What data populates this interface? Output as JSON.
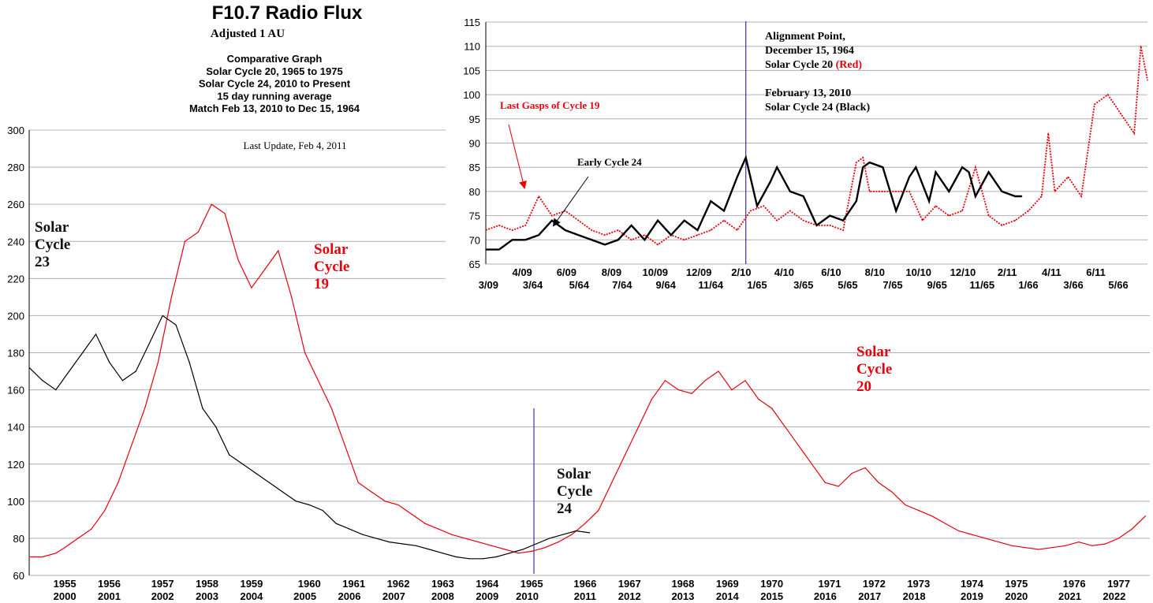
{
  "header": {
    "title": "F10.7 Radio Flux",
    "subtitle": "Adjusted 1 AU",
    "desc_lines": [
      "Comparative Graph",
      "Solar Cycle 20, 1965 to 1975",
      "Solar Cycle 24, 2010 to Present",
      "15 day running average",
      "Match Feb 13, 2010 to Dec 15, 1964"
    ],
    "update": "Last Update, Feb 4, 2011"
  },
  "colors": {
    "red": "#e8000b",
    "black": "#000000",
    "blue": "#1010a0",
    "grid": "#b0b0b0"
  },
  "chart_data": [
    {
      "type": "line",
      "id": "main",
      "ylim": [
        60,
        300
      ],
      "yticks": [
        60,
        80,
        100,
        120,
        140,
        160,
        180,
        200,
        220,
        240,
        260,
        280,
        300
      ],
      "xaxis_top": [
        {
          "label": "1955",
          "x": 1955.0
        },
        {
          "label": "1956",
          "x": 1956.0
        },
        {
          "label": "1957",
          "x": 1957.2
        },
        {
          "label": "1958",
          "x": 1958.2
        },
        {
          "label": "1959",
          "x": 1959.2
        },
        {
          "label": "1960",
          "x": 1960.5
        },
        {
          "label": "1961",
          "x": 1961.5
        },
        {
          "label": "1962",
          "x": 1962.5
        },
        {
          "label": "1963",
          "x": 1963.5
        },
        {
          "label": "1964",
          "x": 1964.5
        },
        {
          "label": "1965",
          "x": 1965.5
        },
        {
          "label": "1966",
          "x": 1966.7
        },
        {
          "label": "1967",
          "x": 1967.7
        },
        {
          "label": "1968",
          "x": 1968.9
        },
        {
          "label": "1969",
          "x": 1969.9
        },
        {
          "label": "1970",
          "x": 1970.9
        },
        {
          "label": "1971",
          "x": 1972.2
        },
        {
          "label": "1972",
          "x": 1973.2
        },
        {
          "label": "1973",
          "x": 1974.2
        },
        {
          "label": "1974",
          "x": 1975.4
        },
        {
          "label": "1975",
          "x": 1976.4
        },
        {
          "label": "1976",
          "x": 1977.7
        },
        {
          "label": "1977",
          "x": 1978.7
        }
      ],
      "xaxis_bottom": [
        {
          "label": "2000",
          "x": 1955.0
        },
        {
          "label": "2001",
          "x": 1956.0
        },
        {
          "label": "2002",
          "x": 1957.2
        },
        {
          "label": "2003",
          "x": 1958.2
        },
        {
          "label": "2004",
          "x": 1959.2
        },
        {
          "label": "2005",
          "x": 1960.4
        },
        {
          "label": "2006",
          "x": 1961.4
        },
        {
          "label": "2007",
          "x": 1962.4
        },
        {
          "label": "2008",
          "x": 1963.5
        },
        {
          "label": "2009",
          "x": 1964.5
        },
        {
          "label": "2010",
          "x": 1965.4
        },
        {
          "label": "2011",
          "x": 1966.7
        },
        {
          "label": "2012",
          "x": 1967.7
        },
        {
          "label": "2013",
          "x": 1968.9
        },
        {
          "label": "2014",
          "x": 1969.9
        },
        {
          "label": "2015",
          "x": 1970.9
        },
        {
          "label": "2016",
          "x": 1972.1
        },
        {
          "label": "2017",
          "x": 1973.1
        },
        {
          "label": "2018",
          "x": 1974.1
        },
        {
          "label": "2019",
          "x": 1975.4
        },
        {
          "label": "2020",
          "x": 1976.4
        },
        {
          "label": "2021",
          "x": 1977.6
        },
        {
          "label": "2022",
          "x": 1978.6
        }
      ],
      "xlim": [
        1954.2,
        1979.4
      ],
      "alignment_x": 1965.55,
      "series": [
        {
          "color": "red",
          "x": [
            1954.2,
            1954.5,
            1954.8,
            1955.0,
            1955.3,
            1955.6,
            1955.9,
            1956.2,
            1956.5,
            1956.8,
            1957.1,
            1957.4,
            1957.7,
            1958.0,
            1958.3,
            1958.6,
            1958.9,
            1959.2,
            1959.5,
            1959.8,
            1960.1,
            1960.4,
            1960.7,
            1961.0,
            1961.3,
            1961.6,
            1961.9,
            1962.2,
            1962.5,
            1962.8,
            1963.1,
            1963.4,
            1963.7,
            1964.0,
            1964.3,
            1964.6,
            1964.9,
            1965.2,
            1965.5,
            1965.8,
            1966.1,
            1966.4,
            1966.7,
            1967.0,
            1967.3,
            1967.6,
            1967.9,
            1968.2,
            1968.5,
            1968.8,
            1969.1,
            1969.4,
            1969.7,
            1970.0,
            1970.3,
            1970.6,
            1970.9,
            1971.2,
            1971.5,
            1971.8,
            1972.1,
            1972.4,
            1972.7,
            1973.0,
            1973.3,
            1973.6,
            1973.9,
            1974.2,
            1974.5,
            1974.8,
            1975.1,
            1975.4,
            1975.7,
            1976.0,
            1976.3,
            1976.6,
            1976.9,
            1977.2,
            1977.5,
            1977.8,
            1978.1,
            1978.4,
            1978.7,
            1979.0,
            1979.3
          ],
          "y": [
            70,
            70,
            72,
            75,
            80,
            85,
            95,
            110,
            130,
            150,
            175,
            210,
            240,
            245,
            260,
            255,
            230,
            215,
            225,
            235,
            210,
            180,
            165,
            150,
            130,
            110,
            105,
            100,
            98,
            93,
            88,
            85,
            82,
            80,
            78,
            76,
            74,
            72,
            73,
            75,
            78,
            82,
            88,
            95,
            110,
            125,
            140,
            155,
            165,
            160,
            158,
            165,
            170,
            160,
            165,
            155,
            150,
            140,
            130,
            120,
            110,
            108,
            115,
            118,
            110,
            105,
            98,
            95,
            92,
            88,
            84,
            82,
            80,
            78,
            76,
            75,
            74,
            75,
            76,
            78,
            76,
            77,
            80,
            85,
            92
          ]
        },
        {
          "color": "black",
          "x": [
            1954.2,
            1954.5,
            1954.8,
            1955.1,
            1955.4,
            1955.7,
            1956.0,
            1956.3,
            1956.6,
            1956.9,
            1957.2,
            1957.5,
            1957.8,
            1958.1,
            1958.4,
            1958.7,
            1959.0,
            1959.3,
            1959.6,
            1959.9,
            1960.2,
            1960.5,
            1960.8,
            1961.1,
            1961.4,
            1961.7,
            1962.0,
            1962.3,
            1962.6,
            1962.9,
            1963.2,
            1963.5,
            1963.8,
            1964.1,
            1964.4,
            1964.7,
            1965.0,
            1965.3,
            1965.6,
            1965.9,
            1966.2,
            1966.5,
            1966.8
          ],
          "y": [
            172,
            165,
            160,
            170,
            180,
            190,
            175,
            165,
            170,
            185,
            200,
            195,
            175,
            150,
            140,
            125,
            120,
            115,
            110,
            105,
            100,
            98,
            95,
            88,
            85,
            82,
            80,
            78,
            77,
            76,
            74,
            72,
            70,
            69,
            69,
            70,
            72,
            74,
            77,
            80,
            82,
            84,
            83
          ]
        }
      ],
      "labels": {
        "cycle23": [
          "Solar",
          "Cycle",
          "23"
        ],
        "cycle19": [
          "Solar",
          "Cycle",
          "19"
        ],
        "cycle24": [
          "Solar",
          "Cycle",
          "24"
        ],
        "cycle20": [
          "Solar",
          "Cycle",
          "20"
        ]
      }
    },
    {
      "type": "line",
      "id": "inset",
      "ylim": [
        65,
        115
      ],
      "yticks": [
        65,
        70,
        75,
        80,
        85,
        90,
        95,
        100,
        105,
        110,
        115
      ],
      "xlim": [
        0,
        100
      ],
      "xaxis_top": [
        {
          "label": "4/09",
          "x": 5.5
        },
        {
          "label": "6/09",
          "x": 12.2
        },
        {
          "label": "8/09",
          "x": 19.0
        },
        {
          "label": "10/09",
          "x": 25.6
        },
        {
          "label": "12/09",
          "x": 32.2
        },
        {
          "label": "2/10",
          "x": 38.6
        },
        {
          "label": "4/10",
          "x": 45.1
        },
        {
          "label": "6/10",
          "x": 52.2
        },
        {
          "label": "8/10",
          "x": 58.8
        },
        {
          "label": "10/10",
          "x": 65.4
        },
        {
          "label": "12/10",
          "x": 72.1
        },
        {
          "label": "2/11",
          "x": 78.8
        },
        {
          "label": "4/11",
          "x": 85.5
        },
        {
          "label": "6/11",
          "x": 92.2
        }
      ],
      "xaxis_bottom": [
        {
          "label": "3/09",
          "x": 0.4
        },
        {
          "label": "3/64",
          "x": 7.1
        },
        {
          "label": "5/64",
          "x": 14.1
        },
        {
          "label": "7/64",
          "x": 20.6
        },
        {
          "label": "9/64",
          "x": 27.2
        },
        {
          "label": "11/64",
          "x": 34.0
        },
        {
          "label": "1/65",
          "x": 41.0
        },
        {
          "label": "3/65",
          "x": 48.0
        },
        {
          "label": "5/65",
          "x": 54.7
        },
        {
          "label": "7/65",
          "x": 61.5
        },
        {
          "label": "9/65",
          "x": 68.2
        },
        {
          "label": "11/65",
          "x": 75.0
        },
        {
          "label": "1/66",
          "x": 82.0
        },
        {
          "label": "3/66",
          "x": 88.8
        },
        {
          "label": "5/66",
          "x": 95.6
        }
      ],
      "alignment_x": 39.3,
      "series": [
        {
          "color": "red",
          "x": [
            0,
            2,
            4,
            6,
            8,
            10,
            12,
            14,
            16,
            18,
            20,
            22,
            24,
            26,
            28,
            30,
            32,
            34,
            36,
            38,
            40,
            42,
            44,
            46,
            48,
            50,
            52,
            54,
            56,
            57,
            58,
            60,
            62,
            64,
            66,
            68,
            70,
            72,
            74,
            76,
            78,
            80,
            82,
            84,
            85,
            86,
            88,
            90,
            92,
            94,
            96,
            98,
            99,
            100
          ],
          "y": [
            72,
            73,
            72,
            73,
            79,
            75,
            76,
            74,
            72,
            71,
            72,
            70,
            71,
            69,
            71,
            70,
            71,
            72,
            74,
            72,
            76,
            77,
            74,
            76,
            74,
            73,
            73,
            72,
            86,
            87,
            80,
            80,
            80,
            80,
            74,
            77,
            75,
            76,
            85,
            75,
            73,
            74,
            76,
            79,
            92,
            80,
            83,
            79,
            98,
            100,
            96,
            92,
            110,
            103
          ]
        },
        {
          "color": "black",
          "x": [
            0,
            2,
            4,
            6,
            8,
            10,
            12,
            14,
            16,
            18,
            20,
            22,
            24,
            26,
            28,
            30,
            32,
            34,
            36,
            38,
            39.3,
            41,
            43,
            44,
            46,
            48,
            50,
            52,
            54,
            56,
            57,
            58,
            60,
            62,
            64,
            65,
            67,
            68,
            70,
            72,
            73,
            74,
            76,
            78,
            80,
            81
          ],
          "y": [
            68,
            68,
            70,
            70,
            71,
            74,
            72,
            71,
            70,
            69,
            70,
            73,
            70,
            74,
            71,
            74,
            72,
            78,
            76,
            83,
            87,
            77,
            82,
            85,
            80,
            79,
            73,
            75,
            74,
            78,
            85,
            86,
            85,
            76,
            83,
            85,
            78,
            84,
            80,
            85,
            84,
            79,
            84,
            80,
            79,
            79
          ]
        }
      ],
      "annotations": {
        "alignment": [
          "Alignment Point,",
          "December 15, 1964",
          "Solar Cycle 20 ",
          "(Red)"
        ],
        "february": [
          "February 13, 2010",
          "Solar Cycle 24 (Black)"
        ],
        "last_gasps": "Last Gasps of Cycle 19",
        "early24": "Early Cycle 24"
      }
    }
  ]
}
